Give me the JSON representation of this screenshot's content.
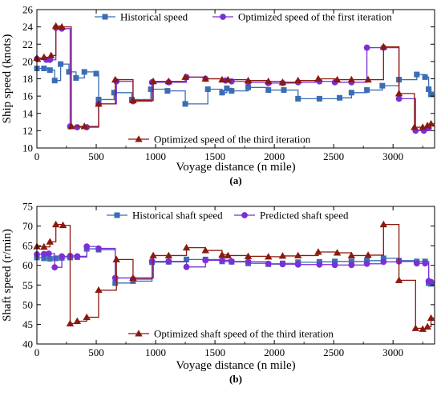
{
  "chart_data": [
    {
      "type": "line",
      "panel_label": "(a)",
      "xlabel": "Voyage distance (n mile)",
      "ylabel": "Ship speed (knots)",
      "xlim": [
        0,
        3350
      ],
      "ylim": [
        10,
        26
      ],
      "xticks": [
        0,
        500,
        1000,
        1500,
        2000,
        2500,
        3000
      ],
      "yticks": [
        10,
        12,
        14,
        16,
        18,
        20,
        22,
        24,
        26
      ],
      "grid": false,
      "step": true,
      "series": [
        {
          "name": "Historical speed",
          "color": "#3a6db5",
          "marker": "square",
          "legend": "top-left",
          "x": [
            0,
            60,
            110,
            150,
            200,
            270,
            330,
            400,
            500,
            520,
            650,
            800,
            960,
            1100,
            1250,
            1440,
            1560,
            1600,
            1640,
            1780,
            1950,
            2080,
            2200,
            2380,
            2550,
            2650,
            2780,
            2910,
            3050,
            3200,
            3270,
            3300,
            3320
          ],
          "values": [
            19.2,
            19.2,
            19.0,
            17.8,
            19.7,
            18.8,
            18.1,
            18.8,
            18.6,
            15.6,
            16.4,
            15.6,
            16.8,
            16.6,
            15.1,
            16.8,
            16.4,
            16.9,
            16.6,
            17.0,
            16.7,
            16.7,
            15.7,
            15.7,
            15.8,
            16.4,
            16.7,
            17.2,
            17.9,
            18.5,
            18.2,
            16.8,
            16.2
          ]
        },
        {
          "name": "Optimized speed of the first iteration",
          "color": "#7b2fd6",
          "marker": "circle",
          "legend": "top-right",
          "x": [
            0,
            80,
            110,
            160,
            210,
            280,
            340,
            420,
            520,
            670,
            810,
            970,
            1110,
            1260,
            1420,
            1590,
            1640,
            1780,
            1950,
            2070,
            2200,
            2380,
            2510,
            2650,
            2780,
            2920,
            3050,
            3190,
            3260,
            3300
          ],
          "values": [
            20.3,
            20.2,
            20.2,
            23.9,
            23.8,
            12.5,
            12.4,
            12.4,
            15.1,
            17.7,
            15.4,
            17.6,
            17.6,
            18.2,
            18.0,
            17.8,
            17.7,
            17.6,
            17.5,
            17.5,
            17.6,
            17.7,
            17.6,
            17.6,
            21.6,
            21.6,
            15.7,
            12.0,
            12.0,
            12.3
          ]
        },
        {
          "name": "Optimized speed of the third iteration",
          "color": "#8b1a0e",
          "marker": "triangle",
          "legend": "bottom",
          "x": [
            0,
            60,
            120,
            160,
            210,
            290,
            400,
            520,
            660,
            810,
            980,
            1110,
            1250,
            1420,
            1560,
            1610,
            1780,
            1950,
            2070,
            2200,
            2370,
            2530,
            2650,
            2790,
            2920,
            3050,
            3180,
            3250,
            3290,
            3320
          ],
          "values": [
            20.4,
            20.5,
            20.7,
            24.1,
            24.0,
            12.5,
            12.5,
            15.1,
            17.9,
            15.5,
            17.7,
            17.7,
            18.2,
            18.0,
            17.9,
            17.9,
            17.8,
            17.7,
            17.6,
            17.8,
            18.0,
            17.9,
            17.9,
            17.9,
            21.7,
            16.3,
            12.4,
            12.4,
            12.6,
            12.8
          ]
        }
      ]
    },
    {
      "type": "line",
      "panel_label": "(b)",
      "xlabel": "Voyage distance (n mile)",
      "ylabel": "Shaft speed (r/min)",
      "xlim": [
        0,
        3350
      ],
      "ylim": [
        40,
        75
      ],
      "xticks": [
        0,
        500,
        1000,
        1500,
        2000,
        2500,
        3000
      ],
      "yticks": [
        40,
        45,
        50,
        55,
        60,
        65,
        70,
        75
      ],
      "grid": false,
      "step": true,
      "series": [
        {
          "name": "Historical shaft speed",
          "color": "#3a6db5",
          "marker": "square",
          "legend": "top-left",
          "x": [
            0,
            60,
            110,
            160,
            210,
            280,
            340,
            420,
            520,
            660,
            810,
            970,
            1110,
            1260,
            1420,
            1560,
            1640,
            1780,
            1950,
            2070,
            2200,
            2380,
            2510,
            2650,
            2780,
            2920,
            3050,
            3200,
            3270,
            3300,
            3320
          ],
          "values": [
            62.0,
            61.8,
            61.7,
            61.8,
            61.9,
            62.0,
            62.1,
            64.2,
            64.0,
            55.5,
            56.0,
            60.8,
            60.9,
            61.5,
            61.5,
            61.0,
            60.9,
            60.5,
            60.3,
            60.5,
            60.8,
            60.9,
            61.0,
            61.0,
            61.2,
            61.8,
            61.2,
            61.0,
            61.0,
            55.5,
            55.3
          ]
        },
        {
          "name": "Predicted shaft speed",
          "color": "#7b2fd6",
          "marker": "circle",
          "legend": "top-right",
          "x": [
            0,
            60,
            100,
            150,
            210,
            280,
            340,
            420,
            520,
            660,
            810,
            970,
            1110,
            1260,
            1420,
            1560,
            1640,
            1780,
            1950,
            2070,
            2200,
            2380,
            2510,
            2650,
            2780,
            2920,
            3050,
            3200,
            3270,
            3300,
            3320
          ],
          "values": [
            62.8,
            62.9,
            63.0,
            59.5,
            62.3,
            62.4,
            62.3,
            64.8,
            64.3,
            56.8,
            56.5,
            61.0,
            61.0,
            59.6,
            61.3,
            61.3,
            61.0,
            60.9,
            60.4,
            60.3,
            60.2,
            60.2,
            60.1,
            60.1,
            60.4,
            60.9,
            61.0,
            60.5,
            60.5,
            56.0,
            55.8
          ]
        },
        {
          "name": "Optimized shaft speed of the third iteration",
          "color": "#8b1a0e",
          "marker": "triangle",
          "legend": "bottom",
          "x": [
            0,
            60,
            110,
            160,
            220,
            280,
            340,
            420,
            520,
            670,
            810,
            980,
            1110,
            1260,
            1420,
            1560,
            1610,
            1780,
            1950,
            2070,
            2200,
            2370,
            2530,
            2650,
            2790,
            2920,
            3050,
            3190,
            3250,
            3290,
            3320
          ],
          "values": [
            64.8,
            64.7,
            66.0,
            70.4,
            70.2,
            45.2,
            45.8,
            46.8,
            53.7,
            61.5,
            56.8,
            62.5,
            62.5,
            64.5,
            63.8,
            62.7,
            62.5,
            62.3,
            62.2,
            62.4,
            62.5,
            63.4,
            63.2,
            62.5,
            62.6,
            70.4,
            56.2,
            44.0,
            43.8,
            44.4,
            46.6
          ]
        }
      ]
    }
  ]
}
